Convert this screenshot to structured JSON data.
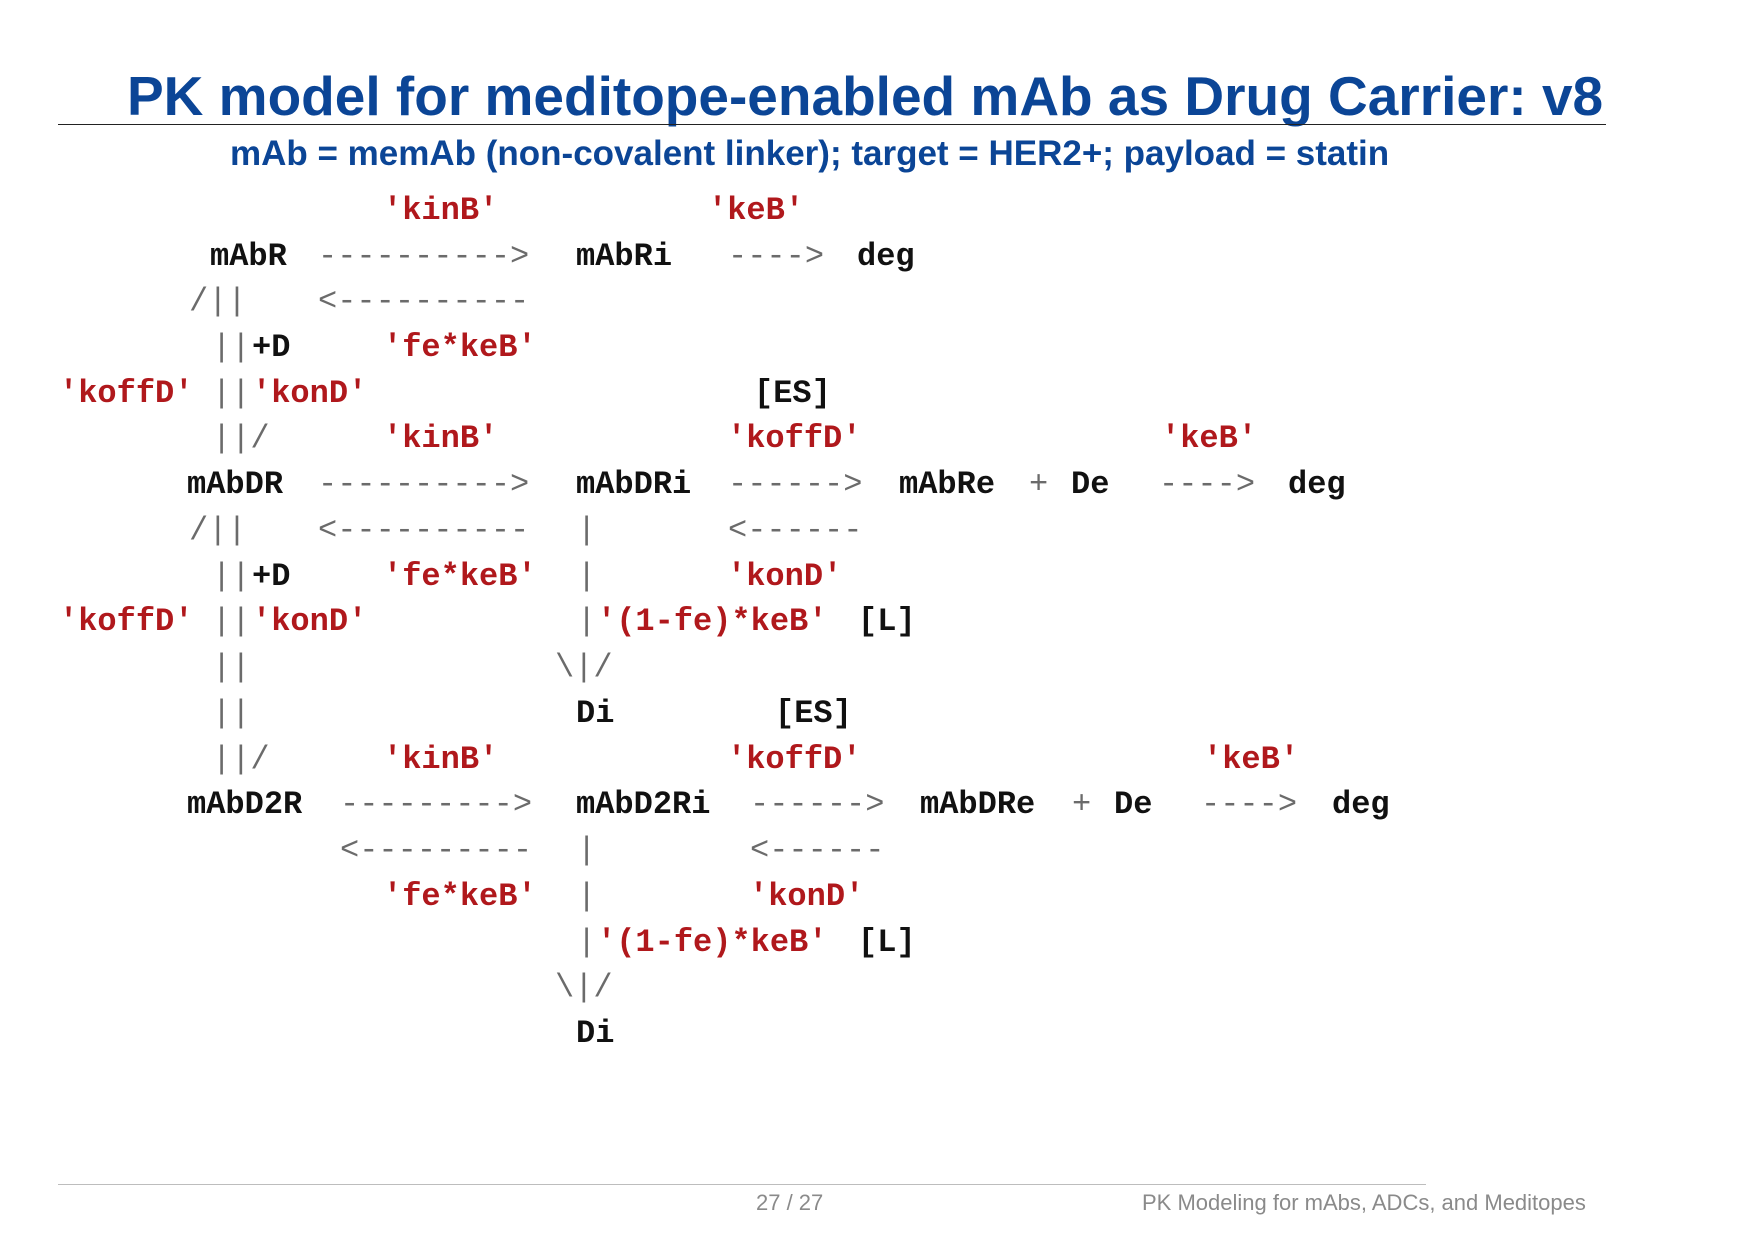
{
  "title": "PK model for meditope-enabled mAb as Drug Carrier: v8",
  "subtitle": "mAb = memAb (non-covalent linker); target = HER2+; payload = statin",
  "diagram": {
    "species": {
      "mAbR": "mAbR",
      "mAbRi": "mAbRi",
      "mAbDR": "mAbDR",
      "mAbDRi": "mAbDRi",
      "mAbRe": "mAbRe",
      "De": "De",
      "mAbD2R": "mAbD2R",
      "mAbD2Ri": "mAbD2Ri",
      "mAbDRe": "mAbDRe",
      "Di": "Di",
      "deg": "deg",
      "plusD": "+D",
      "plus": "+"
    },
    "rates": {
      "kinB": "'kinB'",
      "keB": "'keB'",
      "fekeB": "'fe*keB'",
      "koffD": "'koffD'",
      "konD": "'konD'",
      "onefekeB": "'(1-fe)*keB'"
    },
    "brackets": {
      "ES": "[ES]",
      "L": "[L]"
    },
    "arrows": {
      "long_fwd": "---------->",
      "long_rev": "<----------",
      "long_fwd_short": "--------->",
      "long_rev_short": "<---------",
      "mid_fwd": "------>",
      "mid_rev": "<------",
      "short_fwd": "---->",
      "dbl_left": "/||",
      "dbl": "||",
      "dbl_right": "||/",
      "pipe": "|",
      "down": "\\|/"
    }
  },
  "footer": {
    "page": "27 / 27",
    "short_title": "PK Modeling for mAbs, ADCs, and Meditopes"
  }
}
